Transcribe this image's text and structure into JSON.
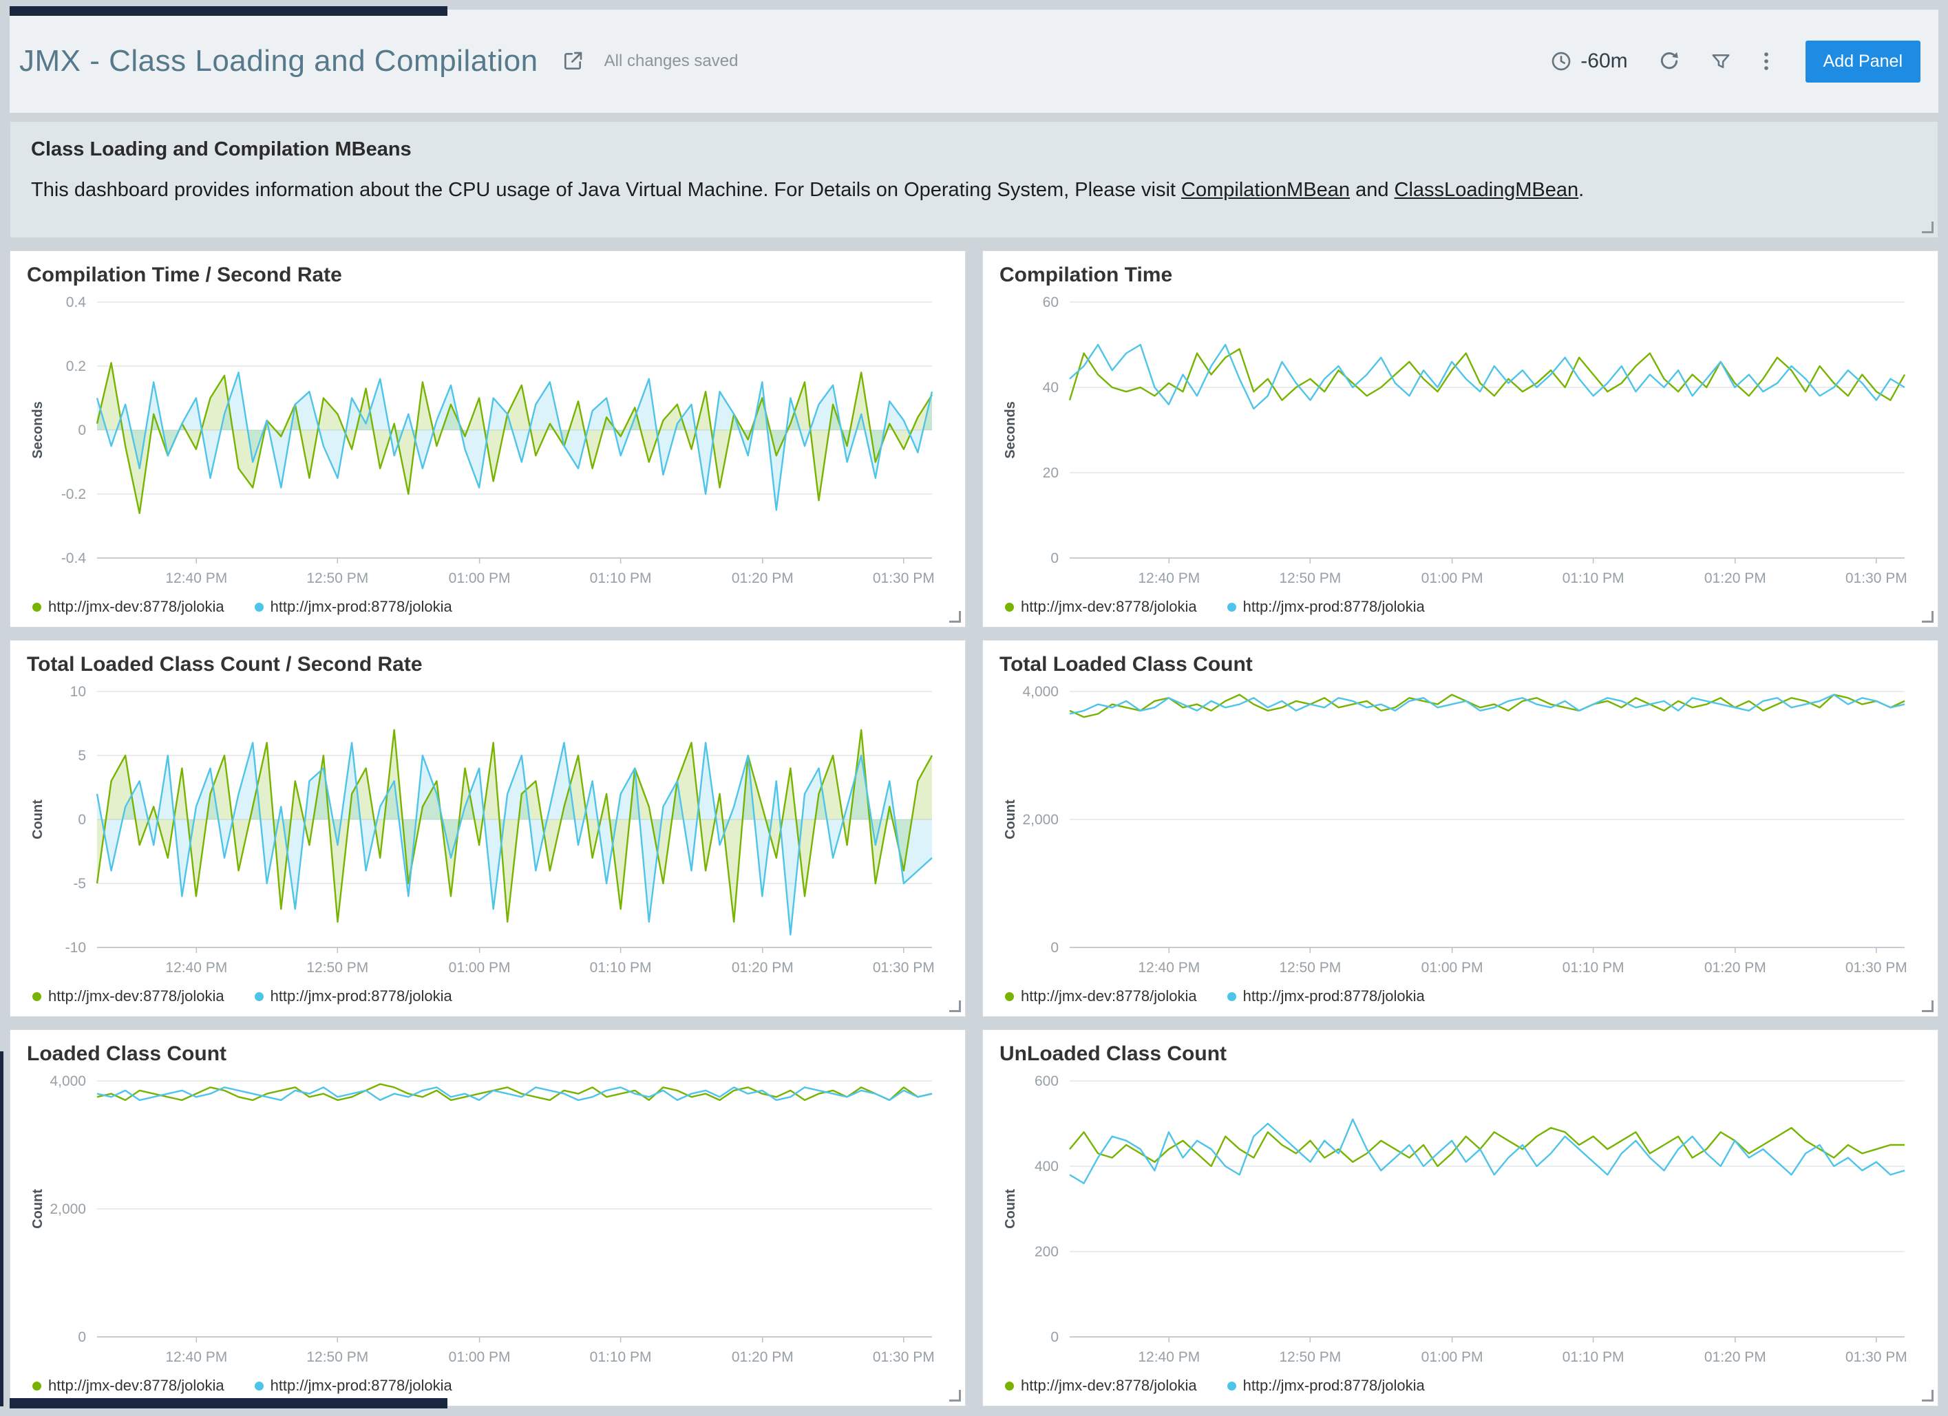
{
  "header": {
    "title": "JMX - Class Loading and Compilation",
    "status": "All changes saved",
    "time_range": "-60m",
    "add_panel_label": "Add Panel",
    "icons": [
      "share-edit-icon",
      "clock-icon",
      "refresh-icon",
      "funnel-icon",
      "kebab-menu-icon"
    ]
  },
  "markdown_panel": {
    "heading": "Class Loading and Compilation MBeans",
    "body_prefix": "This dashboard provides information about the CPU usage of Java Virtual Machine. For Details on Operating System, Please visit ",
    "link1": "CompilationMBean",
    "body_mid": " and ",
    "link2": "ClassLoadingMBean",
    "body_suffix": "."
  },
  "colors": {
    "dev": "#77b300",
    "prod": "#4fc4e9",
    "accent": "#1f8ce4"
  },
  "legend": {
    "dev": "http://jmx-dev:8778/jolokia",
    "prod": "http://jmx-prod:8778/jolokia"
  },
  "chart_data": [
    {
      "type": "area",
      "title": "Compilation Time / Second Rate",
      "ylabel": "Seconds",
      "ylim": [
        -0.4,
        0.4
      ],
      "yticks": [
        {
          "v": -0.4,
          "label": "-0.4"
        },
        {
          "v": -0.2,
          "label": "-0.2"
        },
        {
          "v": 0,
          "label": "0"
        },
        {
          "v": 0.2,
          "label": "0.2"
        },
        {
          "v": 0.4,
          "label": "0.4"
        }
      ],
      "x_tick_labels": [
        "12:40 PM",
        "12:50 PM",
        "01:00 PM",
        "01:10 PM",
        "01:20 PM",
        "01:30 PM"
      ],
      "x_tick_positions": [
        0.119,
        0.288,
        0.458,
        0.627,
        0.797,
        0.966
      ],
      "legend_position": "bottom",
      "series": [
        {
          "name": "http://jmx-dev:8778/jolokia",
          "color_key": "dev",
          "values": [
            0.02,
            0.21,
            -0.05,
            -0.26,
            0.05,
            -0.08,
            0.02,
            -0.06,
            0.1,
            0.17,
            -0.12,
            -0.18,
            0.03,
            -0.02,
            0.08,
            -0.15,
            0.1,
            0.05,
            -0.06,
            0.13,
            -0.12,
            0.02,
            -0.2,
            0.15,
            -0.05,
            0.08,
            -0.02,
            0.1,
            -0.16,
            0.05,
            0.14,
            -0.08,
            0.02,
            -0.05,
            0.09,
            -0.12,
            0.04,
            -0.02,
            0.07,
            -0.1,
            0.03,
            0.08,
            -0.06,
            0.12,
            -0.18,
            0.05,
            -0.03,
            0.1,
            -0.08,
            0.02,
            0.15,
            -0.22,
            0.08,
            -0.05,
            0.18,
            -0.1,
            0.02,
            -0.06,
            0.04,
            0.11
          ]
        },
        {
          "name": "http://jmx-prod:8778/jolokia",
          "color_key": "prod",
          "values": [
            0.1,
            -0.05,
            0.08,
            -0.12,
            0.15,
            -0.08,
            0.02,
            0.1,
            -0.15,
            0.05,
            0.18,
            -0.1,
            0.03,
            -0.18,
            0.08,
            0.12,
            -0.05,
            -0.15,
            0.1,
            0.02,
            0.16,
            -0.08,
            0.05,
            -0.12,
            0.03,
            0.14,
            -0.06,
            -0.18,
            0.1,
            0.05,
            -0.1,
            0.08,
            0.15,
            -0.05,
            -0.12,
            0.06,
            0.1,
            -0.08,
            0.04,
            0.16,
            -0.14,
            0.02,
            0.08,
            -0.2,
            0.12,
            0.05,
            -0.08,
            0.15,
            -0.25,
            0.1,
            -0.05,
            0.08,
            0.14,
            -0.1,
            0.05,
            -0.15,
            0.09,
            0.03,
            -0.07,
            0.12
          ]
        }
      ]
    },
    {
      "type": "line",
      "title": "Compilation Time",
      "ylabel": "Seconds",
      "ylim": [
        0,
        60
      ],
      "yticks": [
        {
          "v": 0,
          "label": "0"
        },
        {
          "v": 20,
          "label": "20"
        },
        {
          "v": 40,
          "label": "40"
        },
        {
          "v": 60,
          "label": "60"
        }
      ],
      "x_tick_labels": [
        "12:40 PM",
        "12:50 PM",
        "01:00 PM",
        "01:10 PM",
        "01:20 PM",
        "01:30 PM"
      ],
      "x_tick_positions": [
        0.119,
        0.288,
        0.458,
        0.627,
        0.797,
        0.966
      ],
      "legend_position": "bottom",
      "series": [
        {
          "name": "http://jmx-dev:8778/jolokia",
          "color_key": "dev",
          "values": [
            37,
            48,
            43,
            40,
            39,
            40,
            38,
            41,
            39,
            48,
            43,
            47,
            49,
            39,
            42,
            37,
            40,
            42,
            39,
            44,
            41,
            38,
            40,
            43,
            46,
            42,
            39,
            44,
            48,
            41,
            38,
            42,
            39,
            41,
            44,
            40,
            47,
            43,
            39,
            41,
            45,
            48,
            42,
            39,
            43,
            40,
            46,
            41,
            38,
            42,
            47,
            44,
            39,
            45,
            41,
            38,
            43,
            39,
            37,
            43
          ]
        },
        {
          "name": "http://jmx-prod:8778/jolokia",
          "color_key": "prod",
          "values": [
            42,
            45,
            50,
            44,
            48,
            50,
            40,
            36,
            43,
            38,
            45,
            50,
            42,
            35,
            38,
            46,
            41,
            37,
            42,
            45,
            40,
            43,
            47,
            41,
            38,
            44,
            40,
            46,
            42,
            39,
            45,
            41,
            44,
            40,
            43,
            47,
            42,
            38,
            41,
            45,
            39,
            43,
            40,
            44,
            38,
            42,
            46,
            40,
            43,
            39,
            41,
            45,
            42,
            38,
            40,
            44,
            41,
            37,
            42,
            40
          ]
        }
      ]
    },
    {
      "type": "area",
      "title": "Total Loaded Class Count / Second Rate",
      "ylabel": "Count",
      "ylim": [
        -10,
        10
      ],
      "yticks": [
        {
          "v": -10,
          "label": "-10"
        },
        {
          "v": -5,
          "label": "-5"
        },
        {
          "v": 0,
          "label": "0"
        },
        {
          "v": 5,
          "label": "5"
        },
        {
          "v": 10,
          "label": "10"
        }
      ],
      "x_tick_labels": [
        "12:40 PM",
        "12:50 PM",
        "01:00 PM",
        "01:10 PM",
        "01:20 PM",
        "01:30 PM"
      ],
      "x_tick_positions": [
        0.119,
        0.288,
        0.458,
        0.627,
        0.797,
        0.966
      ],
      "legend_position": "bottom",
      "series": [
        {
          "name": "http://jmx-dev:8778/jolokia",
          "color_key": "dev",
          "values": [
            -5,
            3,
            5,
            -2,
            1,
            -3,
            4,
            -6,
            2,
            5,
            -4,
            1,
            6,
            -7,
            3,
            -2,
            5,
            -8,
            2,
            4,
            -3,
            7,
            -5,
            1,
            3,
            -6,
            4,
            -2,
            6,
            -8,
            2,
            3,
            -4,
            1,
            5,
            -3,
            2,
            -7,
            4,
            1,
            -5,
            3,
            6,
            -4,
            2,
            -8,
            5,
            1,
            -3,
            4,
            -6,
            2,
            5,
            -2,
            7,
            -5,
            1,
            -4,
            3,
            5
          ]
        },
        {
          "name": "http://jmx-prod:8778/jolokia",
          "color_key": "prod",
          "values": [
            2,
            -4,
            1,
            3,
            -2,
            5,
            -6,
            1,
            4,
            -3,
            2,
            6,
            -5,
            1,
            -7,
            3,
            4,
            -2,
            6,
            -4,
            1,
            3,
            -6,
            5,
            2,
            -3,
            1,
            4,
            -7,
            2,
            5,
            -4,
            1,
            6,
            -2,
            3,
            -5,
            2,
            4,
            -8,
            1,
            3,
            -4,
            6,
            -2,
            1,
            5,
            -6,
            3,
            -9,
            2,
            4,
            -3,
            1,
            5,
            -2,
            3,
            -5,
            -4,
            -3
          ]
        }
      ]
    },
    {
      "type": "line",
      "title": "Total Loaded Class Count",
      "ylabel": "Count",
      "ylim": [
        0,
        4000
      ],
      "yticks": [
        {
          "v": 0,
          "label": "0"
        },
        {
          "v": 2000,
          "label": "2,000"
        },
        {
          "v": 4000,
          "label": "4,000"
        }
      ],
      "x_tick_labels": [
        "12:40 PM",
        "12:50 PM",
        "01:00 PM",
        "01:10 PM",
        "01:20 PM",
        "01:30 PM"
      ],
      "x_tick_positions": [
        0.119,
        0.288,
        0.458,
        0.627,
        0.797,
        0.966
      ],
      "legend_position": "bottom",
      "series": [
        {
          "name": "http://jmx-dev:8778/jolokia",
          "color_key": "dev",
          "values": [
            3700,
            3600,
            3650,
            3800,
            3750,
            3700,
            3850,
            3900,
            3750,
            3800,
            3700,
            3850,
            3950,
            3800,
            3700,
            3750,
            3850,
            3800,
            3900,
            3750,
            3800,
            3850,
            3700,
            3750,
            3900,
            3850,
            3800,
            3950,
            3850,
            3750,
            3800,
            3700,
            3850,
            3900,
            3800,
            3750,
            3700,
            3800,
            3850,
            3750,
            3900,
            3800,
            3700,
            3850,
            3750,
            3800,
            3900,
            3750,
            3850,
            3700,
            3800,
            3900,
            3850,
            3750,
            3950,
            3900,
            3800,
            3850,
            3750,
            3850
          ]
        },
        {
          "name": "http://jmx-prod:8778/jolokia",
          "color_key": "prod",
          "values": [
            3650,
            3700,
            3800,
            3750,
            3850,
            3700,
            3750,
            3900,
            3800,
            3700,
            3850,
            3750,
            3800,
            3900,
            3750,
            3850,
            3700,
            3800,
            3750,
            3900,
            3850,
            3750,
            3800,
            3700,
            3850,
            3900,
            3750,
            3800,
            3850,
            3700,
            3750,
            3850,
            3900,
            3800,
            3750,
            3850,
            3700,
            3800,
            3900,
            3850,
            3750,
            3800,
            3850,
            3700,
            3900,
            3850,
            3800,
            3750,
            3700,
            3850,
            3900,
            3750,
            3800,
            3850,
            3950,
            3800,
            3900,
            3850,
            3750,
            3800
          ]
        }
      ]
    },
    {
      "type": "line",
      "title": "Loaded Class Count",
      "ylabel": "Count",
      "ylim": [
        0,
        4000
      ],
      "yticks": [
        {
          "v": 0,
          "label": "0"
        },
        {
          "v": 2000,
          "label": "2,000"
        },
        {
          "v": 4000,
          "label": "4,000"
        }
      ],
      "x_tick_labels": [
        "12:40 PM",
        "12:50 PM",
        "01:00 PM",
        "01:10 PM",
        "01:20 PM",
        "01:30 PM"
      ],
      "x_tick_positions": [
        0.119,
        0.288,
        0.458,
        0.627,
        0.797,
        0.966
      ],
      "legend_position": "bottom",
      "series": [
        {
          "name": "http://jmx-dev:8778/jolokia",
          "color_key": "dev",
          "values": [
            3750,
            3800,
            3700,
            3850,
            3800,
            3750,
            3700,
            3800,
            3900,
            3850,
            3750,
            3700,
            3800,
            3850,
            3900,
            3750,
            3800,
            3700,
            3750,
            3850,
            3950,
            3900,
            3800,
            3750,
            3850,
            3700,
            3750,
            3800,
            3850,
            3900,
            3800,
            3750,
            3700,
            3850,
            3800,
            3900,
            3750,
            3800,
            3850,
            3700,
            3900,
            3850,
            3750,
            3800,
            3700,
            3850,
            3900,
            3800,
            3750,
            3850,
            3700,
            3800,
            3850,
            3750,
            3900,
            3800,
            3700,
            3900,
            3750,
            3800
          ]
        },
        {
          "name": "http://jmx-prod:8778/jolokia",
          "color_key": "prod",
          "values": [
            3800,
            3750,
            3850,
            3700,
            3750,
            3800,
            3850,
            3750,
            3800,
            3900,
            3850,
            3800,
            3750,
            3700,
            3850,
            3800,
            3900,
            3750,
            3800,
            3850,
            3700,
            3800,
            3750,
            3850,
            3900,
            3750,
            3800,
            3700,
            3850,
            3800,
            3750,
            3900,
            3850,
            3800,
            3700,
            3750,
            3850,
            3900,
            3800,
            3750,
            3850,
            3700,
            3800,
            3850,
            3750,
            3900,
            3800,
            3850,
            3700,
            3750,
            3900,
            3850,
            3800,
            3750,
            3850,
            3800,
            3700,
            3850,
            3750,
            3800
          ]
        }
      ]
    },
    {
      "type": "line",
      "title": "UnLoaded Class Count",
      "ylabel": "Count",
      "ylim": [
        0,
        600
      ],
      "yticks": [
        {
          "v": 0,
          "label": "0"
        },
        {
          "v": 200,
          "label": "200"
        },
        {
          "v": 400,
          "label": "400"
        },
        {
          "v": 600,
          "label": "600"
        }
      ],
      "x_tick_labels": [
        "12:40 PM",
        "12:50 PM",
        "01:00 PM",
        "01:10 PM",
        "01:20 PM",
        "01:30 PM"
      ],
      "x_tick_positions": [
        0.119,
        0.288,
        0.458,
        0.627,
        0.797,
        0.966
      ],
      "legend_position": "bottom",
      "series": [
        {
          "name": "http://jmx-dev:8778/jolokia",
          "color_key": "dev",
          "values": [
            440,
            480,
            430,
            420,
            450,
            430,
            410,
            440,
            460,
            430,
            400,
            470,
            440,
            420,
            480,
            450,
            430,
            460,
            420,
            440,
            410,
            430,
            460,
            440,
            420,
            450,
            400,
            430,
            470,
            440,
            480,
            460,
            440,
            470,
            490,
            480,
            450,
            470,
            440,
            460,
            480,
            430,
            450,
            470,
            420,
            440,
            480,
            460,
            430,
            450,
            470,
            490,
            460,
            440,
            420,
            450,
            430,
            440,
            450,
            450
          ]
        },
        {
          "name": "http://jmx-prod:8778/jolokia",
          "color_key": "prod",
          "values": [
            380,
            360,
            420,
            470,
            460,
            440,
            390,
            480,
            420,
            460,
            440,
            400,
            380,
            470,
            500,
            470,
            440,
            410,
            460,
            430,
            510,
            440,
            390,
            420,
            450,
            400,
            430,
            460,
            410,
            440,
            380,
            420,
            450,
            400,
            430,
            470,
            440,
            410,
            380,
            430,
            460,
            420,
            390,
            440,
            470,
            430,
            400,
            460,
            420,
            440,
            410,
            380,
            430,
            450,
            400,
            420,
            390,
            410,
            380,
            390
          ]
        }
      ]
    }
  ]
}
